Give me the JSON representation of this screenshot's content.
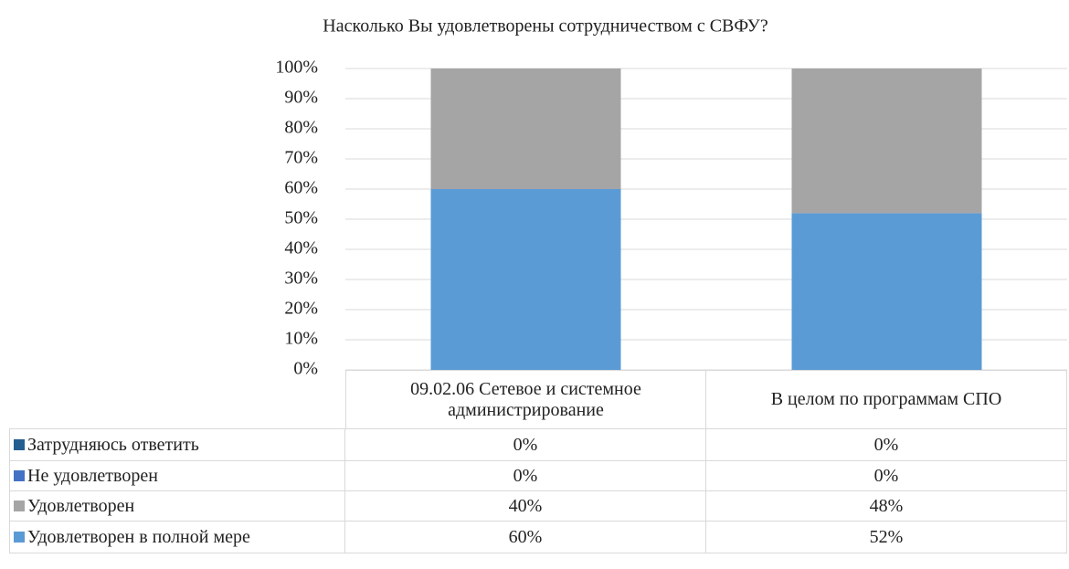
{
  "chart_data": {
    "type": "stacked_bar",
    "title": "Насколько Вы удовлетворены сотрудничеством с СВФУ?",
    "categories": [
      "09.02.06 Сетевое и системное администрирование",
      "В целом по программам СПО"
    ],
    "series": [
      {
        "name": "Затрудняюсь ответить",
        "color": "#255e91",
        "values": [
          0,
          0
        ],
        "value_labels": [
          "0%",
          "0%"
        ]
      },
      {
        "name": "Не удовлетворен",
        "color": "#4472c4",
        "values": [
          0,
          0
        ],
        "value_labels": [
          "0%",
          "0%"
        ]
      },
      {
        "name": "Удовлетворен",
        "color": "#a5a5a5",
        "values": [
          40,
          48
        ],
        "value_labels": [
          "40%",
          "48%"
        ]
      },
      {
        "name": "Удовлетворен в полной мере",
        "color": "#5b9bd5",
        "values": [
          60,
          52
        ],
        "value_labels": [
          "60%",
          "52%"
        ]
      }
    ],
    "ylim": [
      0,
      100
    ],
    "yticks": [
      {
        "value": 0,
        "label": "0%"
      },
      {
        "value": 10,
        "label": "10%"
      },
      {
        "value": 20,
        "label": "20%"
      },
      {
        "value": 30,
        "label": "30%"
      },
      {
        "value": 40,
        "label": "40%"
      },
      {
        "value": 50,
        "label": "50%"
      },
      {
        "value": 60,
        "label": "60%"
      },
      {
        "value": 70,
        "label": "70%"
      },
      {
        "value": 80,
        "label": "80%"
      },
      {
        "value": 90,
        "label": "90%"
      },
      {
        "value": 100,
        "label": "100%"
      }
    ],
    "grid": true
  }
}
